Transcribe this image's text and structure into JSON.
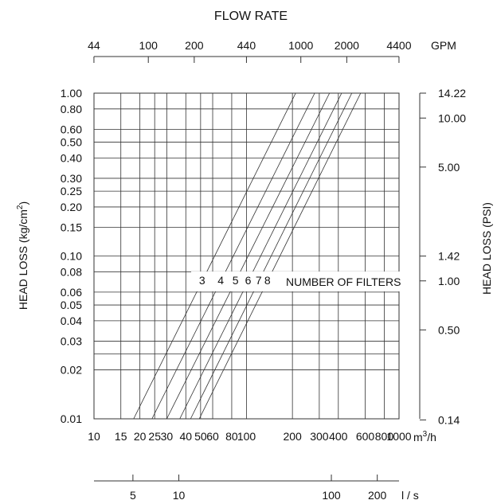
{
  "chart_data": {
    "type": "line",
    "title": "FLOW RATE",
    "ylabel": "HEAD LOSS (kg/cm2)",
    "ylabel_base": "HEAD LOSS (kg/cm",
    "ylabel_sup": "2",
    "ylabel_end": ")",
    "y2label": "HEAD LOSS (PSI)",
    "x_unit": "m3/h",
    "x_unit_base": "m",
    "x_unit_sup": "3",
    "x_unit_end": "/h",
    "gpm_unit": "GPM",
    "ls_unit": "l / s",
    "x_scale": "log",
    "y_scale": "log",
    "xlim": [
      10,
      1000
    ],
    "ylim": [
      0.01,
      1.0
    ],
    "x_ticks": [
      {
        "value": 10,
        "label": "10"
      },
      {
        "value": 15,
        "label": "15"
      },
      {
        "value": 20,
        "label": "20"
      },
      {
        "value": 25,
        "label": "25"
      },
      {
        "value": 30,
        "label": "30"
      },
      {
        "value": 40,
        "label": "40"
      },
      {
        "value": 50,
        "label": "50"
      },
      {
        "value": 60,
        "label": "60"
      },
      {
        "value": 80,
        "label": "80"
      },
      {
        "value": 100,
        "label": "100"
      },
      {
        "value": 200,
        "label": "200"
      },
      {
        "value": 300,
        "label": "300"
      },
      {
        "value": 400,
        "label": "400"
      },
      {
        "value": 600,
        "label": "600"
      },
      {
        "value": 800,
        "label": "800"
      },
      {
        "value": 1000,
        "label": "1000"
      }
    ],
    "y_ticks": [
      {
        "value": 0.01,
        "label": "0.01"
      },
      {
        "value": 0.02,
        "label": "0.02"
      },
      {
        "value": 0.025,
        "label": ""
      },
      {
        "value": 0.03,
        "label": "0.03"
      },
      {
        "value": 0.04,
        "label": "0.04"
      },
      {
        "value": 0.05,
        "label": "0.05"
      },
      {
        "value": 0.06,
        "label": "0.06"
      },
      {
        "value": 0.08,
        "label": "0.08"
      },
      {
        "value": 0.1,
        "label": "0.10"
      },
      {
        "value": 0.15,
        "label": "0.15"
      },
      {
        "value": 0.2,
        "label": "0.20"
      },
      {
        "value": 0.25,
        "label": "0.25"
      },
      {
        "value": 0.3,
        "label": "0.30"
      },
      {
        "value": 0.4,
        "label": "0.40"
      },
      {
        "value": 0.5,
        "label": "0.50"
      },
      {
        "value": 0.6,
        "label": "0.60"
      },
      {
        "value": 0.8,
        "label": "0.80"
      },
      {
        "value": 1.0,
        "label": "1.00"
      }
    ],
    "gpm_ticks": [
      {
        "value": 44,
        "label": "44"
      },
      {
        "value": 100,
        "label": "100"
      },
      {
        "value": 200,
        "label": "200"
      },
      {
        "value": 440,
        "label": "440"
      },
      {
        "value": 1000,
        "label": "1000"
      },
      {
        "value": 2000,
        "label": "2000"
      },
      {
        "value": 4400,
        "label": "4400"
      }
    ],
    "psi_ticks": [
      {
        "value": 14.22,
        "label": "14.22"
      },
      {
        "value": 10.0,
        "label": "10.00"
      },
      {
        "value": 5.0,
        "label": "5.00"
      },
      {
        "value": 1.42,
        "label": "1.42"
      },
      {
        "value": 1.0,
        "label": "1.00"
      },
      {
        "value": 0.5,
        "label": "0.50"
      },
      {
        "value": 0.14,
        "label": "0.14"
      }
    ],
    "ls_ticks": [
      {
        "value": 5,
        "label": "5"
      },
      {
        "value": 10,
        "label": "10"
      },
      {
        "value": 100,
        "label": "100"
      },
      {
        "value": 200,
        "label": "200"
      }
    ],
    "series": [
      {
        "name": "3",
        "x": [
          18.2,
          210
        ],
        "y": [
          0.01,
          1.0
        ]
      },
      {
        "name": "4",
        "x": [
          24.0,
          280
        ],
        "y": [
          0.01,
          1.0
        ]
      },
      {
        "name": "5",
        "x": [
          30.0,
          350
        ],
        "y": [
          0.01,
          1.0
        ]
      },
      {
        "name": "6",
        "x": [
          36.5,
          420
        ],
        "y": [
          0.01,
          1.0
        ]
      },
      {
        "name": "7",
        "x": [
          43.0,
          490
        ],
        "y": [
          0.01,
          1.0
        ]
      },
      {
        "name": "8",
        "x": [
          49.0,
          560
        ],
        "y": [
          0.01,
          1.0
        ]
      }
    ],
    "series_label_y": 0.07,
    "annotation": "NUMBER OF FILTERS",
    "grid": true
  }
}
